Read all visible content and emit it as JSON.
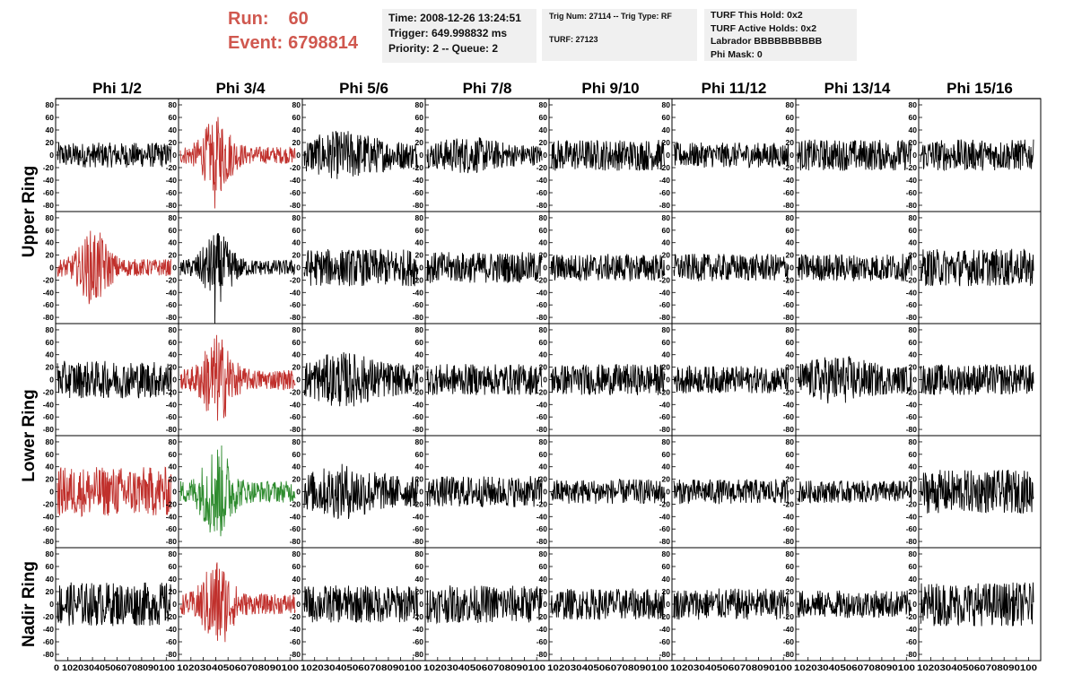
{
  "run_label": "Run:",
  "run_value": "60",
  "event_label": "Event:",
  "event_value": "6798814",
  "info1": [
    "Time: 2008-12-26 13:24:51",
    "Trigger: 649.998832 ms",
    "Priority: 2 -- Queue: 2"
  ],
  "info2": [
    "Trig Num: 27114 -- Trig Type: RF",
    "TURF: 27123"
  ],
  "info3": [
    "TURF This Hold: 0x2",
    "TURF Active Holds: 0x2",
    "Labrador BBBBBBBBBB",
    "Phi Mask: 0"
  ],
  "colors": {
    "black": "#000000",
    "red": "#c0302c",
    "green": "#2e8b2e",
    "run_text": "#d0584f",
    "box_bg": "#f0f0f0"
  },
  "chart_data": {
    "type": "line",
    "columns": [
      "Phi 1/2",
      "Phi 3/4",
      "Phi 5/6",
      "Phi 7/8",
      "Phi 9/10",
      "Phi 11/12",
      "Phi 13/14",
      "Phi 15/16"
    ],
    "rows": [
      "Upper Ring",
      "",
      "Lower Ring",
      "",
      "Nadir Ring"
    ],
    "ylim": [
      -90,
      90
    ],
    "yticks": [
      -80,
      -60,
      -40,
      -20,
      0,
      20,
      40,
      60,
      80
    ],
    "xlim": [
      0,
      100
    ],
    "xticks": [
      0,
      10,
      20,
      30,
      40,
      50,
      60,
      70,
      80,
      90
    ],
    "bottom_axis_tick_text": [
      "0 102030405060708090100",
      "102030405060708090100",
      "102030405060708090100",
      "102030405060708090100",
      "102030405060708090100",
      "102030405060708090100",
      "102030405060708090100",
      "102030405060708090100"
    ],
    "panels": [
      {
        "row": 0,
        "col": 0,
        "color": "black",
        "amplitude": 20,
        "envelope": "flat"
      },
      {
        "row": 0,
        "col": 1,
        "color": "red",
        "amplitude": 55,
        "envelope": "burst",
        "min": -85
      },
      {
        "row": 0,
        "col": 2,
        "color": "black",
        "amplitude": 40,
        "envelope": "broad"
      },
      {
        "row": 0,
        "col": 3,
        "color": "black",
        "amplitude": 30,
        "envelope": "broad"
      },
      {
        "row": 0,
        "col": 4,
        "color": "black",
        "amplitude": 25,
        "envelope": "flat"
      },
      {
        "row": 0,
        "col": 5,
        "color": "black",
        "amplitude": 20,
        "envelope": "flat"
      },
      {
        "row": 0,
        "col": 6,
        "color": "black",
        "amplitude": 25,
        "envelope": "flat"
      },
      {
        "row": 0,
        "col": 7,
        "color": "black",
        "amplitude": 25,
        "envelope": "flat"
      },
      {
        "row": 1,
        "col": 0,
        "color": "red",
        "amplitude": 55,
        "envelope": "burst"
      },
      {
        "row": 1,
        "col": 1,
        "color": "black",
        "amplitude": 50,
        "envelope": "burst",
        "min": -90
      },
      {
        "row": 1,
        "col": 2,
        "color": "black",
        "amplitude": 30,
        "envelope": "flat"
      },
      {
        "row": 1,
        "col": 3,
        "color": "black",
        "amplitude": 25,
        "envelope": "flat"
      },
      {
        "row": 1,
        "col": 4,
        "color": "black",
        "amplitude": 22,
        "envelope": "flat"
      },
      {
        "row": 1,
        "col": 5,
        "color": "black",
        "amplitude": 22,
        "envelope": "flat"
      },
      {
        "row": 1,
        "col": 6,
        "color": "black",
        "amplitude": 22,
        "envelope": "flat"
      },
      {
        "row": 1,
        "col": 7,
        "color": "black",
        "amplitude": 30,
        "envelope": "flat"
      },
      {
        "row": 2,
        "col": 0,
        "color": "black",
        "amplitude": 30,
        "envelope": "flat"
      },
      {
        "row": 2,
        "col": 1,
        "color": "red",
        "amplitude": 65,
        "envelope": "burst"
      },
      {
        "row": 2,
        "col": 2,
        "color": "black",
        "amplitude": 45,
        "envelope": "broad"
      },
      {
        "row": 2,
        "col": 3,
        "color": "black",
        "amplitude": 25,
        "envelope": "flat"
      },
      {
        "row": 2,
        "col": 4,
        "color": "black",
        "amplitude": 25,
        "envelope": "flat"
      },
      {
        "row": 2,
        "col": 5,
        "color": "black",
        "amplitude": 22,
        "envelope": "flat"
      },
      {
        "row": 2,
        "col": 6,
        "color": "black",
        "amplitude": 40,
        "envelope": "broad"
      },
      {
        "row": 2,
        "col": 7,
        "color": "black",
        "amplitude": 25,
        "envelope": "flat"
      },
      {
        "row": 3,
        "col": 0,
        "color": "red",
        "amplitude": 40,
        "envelope": "flat"
      },
      {
        "row": 3,
        "col": 1,
        "color": "green",
        "amplitude": 70,
        "envelope": "burst"
      },
      {
        "row": 3,
        "col": 2,
        "color": "black",
        "amplitude": 45,
        "envelope": "broad"
      },
      {
        "row": 3,
        "col": 3,
        "color": "black",
        "amplitude": 25,
        "envelope": "flat"
      },
      {
        "row": 3,
        "col": 4,
        "color": "black",
        "amplitude": 20,
        "envelope": "flat"
      },
      {
        "row": 3,
        "col": 5,
        "color": "black",
        "amplitude": 20,
        "envelope": "flat"
      },
      {
        "row": 3,
        "col": 6,
        "color": "black",
        "amplitude": 18,
        "envelope": "flat"
      },
      {
        "row": 3,
        "col": 7,
        "color": "black",
        "amplitude": 35,
        "envelope": "flat"
      },
      {
        "row": 4,
        "col": 0,
        "color": "black",
        "amplitude": 35,
        "envelope": "flat"
      },
      {
        "row": 4,
        "col": 1,
        "color": "red",
        "amplitude": 65,
        "envelope": "burst"
      },
      {
        "row": 4,
        "col": 2,
        "color": "black",
        "amplitude": 30,
        "envelope": "flat"
      },
      {
        "row": 4,
        "col": 3,
        "color": "black",
        "amplitude": 30,
        "envelope": "flat"
      },
      {
        "row": 4,
        "col": 4,
        "color": "black",
        "amplitude": 25,
        "envelope": "flat"
      },
      {
        "row": 4,
        "col": 5,
        "color": "black",
        "amplitude": 25,
        "envelope": "flat"
      },
      {
        "row": 4,
        "col": 6,
        "color": "black",
        "amplitude": 22,
        "envelope": "flat"
      },
      {
        "row": 4,
        "col": 7,
        "color": "black",
        "amplitude": 35,
        "envelope": "flat"
      }
    ]
  }
}
